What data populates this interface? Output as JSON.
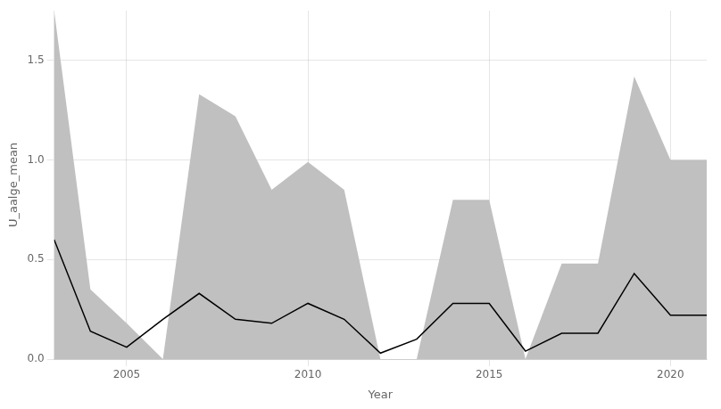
{
  "chart_data": {
    "type": "line",
    "x": [
      2003,
      2004,
      2005,
      2006,
      2007,
      2008,
      2009,
      2010,
      2011,
      2012,
      2013,
      2014,
      2015,
      2016,
      2017,
      2018,
      2019,
      2020,
      2021
    ],
    "xlabel": "Year",
    "ylabel": "U_aalge_mean",
    "xlim": [
      2003,
      2021
    ],
    "xticks": [
      2005,
      2010,
      2015,
      2020
    ],
    "ylim": [
      0.0,
      1.75
    ],
    "yticks": [
      {
        "value": 0,
        "label": "0.0"
      },
      0.5,
      {
        "value": 1,
        "label": "1.0"
      },
      1.5
    ],
    "grid": true,
    "series": [
      {
        "type": "area",
        "upper": [
          1.75,
          0.35,
          0.18,
          0.0,
          1.33,
          1.22,
          0.85,
          0.99,
          0.85,
          0.0,
          0.0,
          0.8,
          0.8,
          0.0,
          0.48,
          0.48,
          1.42,
          1.0,
          1.0
        ],
        "lower": [
          0.0,
          0.0,
          0.0,
          0.0,
          0.0,
          0.0,
          0.0,
          0.0,
          0.0,
          0.0,
          0.0,
          0.0,
          0.0,
          0.0,
          0.0,
          0.0,
          0.0,
          0.0,
          0.0
        ],
        "color": "#C0C0C0"
      },
      {
        "type": "line",
        "values": [
          0.6,
          0.14,
          0.06,
          0.2,
          0.33,
          0.2,
          0.18,
          0.28,
          0.2,
          0.03,
          0.1,
          0.28,
          0.28,
          0.04,
          0.13,
          0.13,
          0.43,
          0.22,
          0.22
        ],
        "color": "#000000"
      }
    ]
  }
}
